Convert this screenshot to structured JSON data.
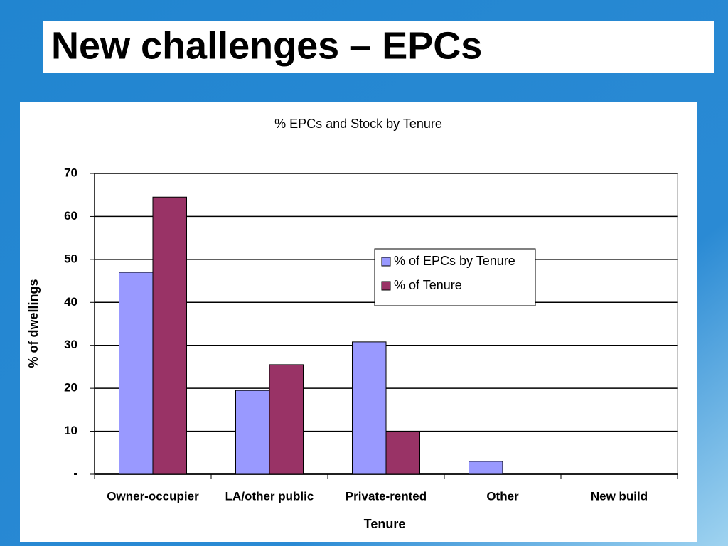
{
  "header": {
    "title": "New challenges – EPCs"
  },
  "chart_data": {
    "type": "bar",
    "title": "% EPCs and Stock by Tenure",
    "x_label": "Tenure",
    "y_label": "% of dwellings",
    "categories": [
      "Owner-occupier",
      "LA/other public",
      "Private-rented",
      "Other",
      "New build"
    ],
    "series": [
      {
        "name": "% of EPCs by Tenure",
        "color": "#9999ff",
        "values": [
          47,
          19.5,
          30.8,
          3,
          0
        ]
      },
      {
        "name": "% of Tenure",
        "color": "#993366",
        "values": [
          64.5,
          25.5,
          10,
          0,
          0
        ]
      }
    ],
    "ylim": [
      0,
      70
    ],
    "yticks": [
      {
        "value": 0,
        "label": "-"
      },
      10,
      20,
      30,
      40,
      50,
      60,
      70
    ],
    "grid": true,
    "legend": "upper-right"
  }
}
